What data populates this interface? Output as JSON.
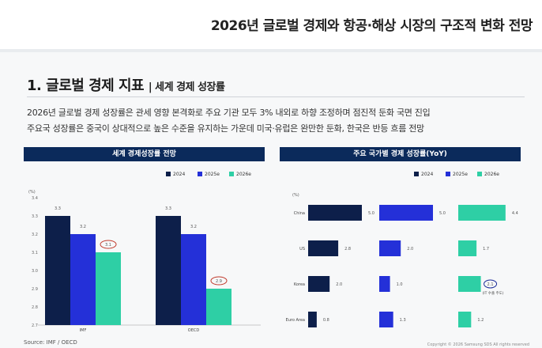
{
  "header": {
    "title": "2026년 글로벌 경제와 항공·해상 시장의 구조적 변화 전망"
  },
  "section": {
    "title": "1. 글로벌 경제 지표",
    "subtitle": "| 세계 경제 성장률"
  },
  "description": [
    "2026년 글로벌 경제 성장률은 관세 영향 본격화로 주요 기관 모두 3% 내외로 하향 조정하며 점진적 둔화 국면 진입",
    "주요국 성장률은 중국이 상대적으로 높은 수준을 유지하는 가운데 미국·유럽은 완만한 둔화, 한국은 반등 흐름 전망"
  ],
  "footer": {
    "source": "Source: IMF / OECD",
    "copyright": "Copyright © 2026 Samsung SDS All rights reserved"
  },
  "colors": {
    "s2024": "#0d1f4a",
    "s2025": "#2430d8",
    "s2026": "#2ecfa5",
    "header": "#0b2a5b",
    "highlight": "#c0392b",
    "korea_highlight": "#1f2f9a"
  },
  "chart_data": [
    {
      "type": "bar",
      "title": "세계 경제성장률 전망",
      "unit": "(%)",
      "categories": [
        "IMF",
        "OECD"
      ],
      "series": [
        {
          "name": "2024",
          "values": [
            3.3,
            3.3
          ]
        },
        {
          "name": "2025e",
          "values": [
            3.2,
            3.2
          ]
        },
        {
          "name": "2026e",
          "values": [
            3.1,
            2.9
          ]
        }
      ],
      "ylim": [
        2.7,
        3.4
      ],
      "yticks": [
        2.7,
        2.8,
        2.9,
        3.0,
        3.1,
        3.2,
        3.3,
        3.4
      ],
      "legend": "top-right",
      "highlighted_labels": [
        "3.1",
        "2.9"
      ]
    },
    {
      "type": "bar",
      "orientation": "horizontal",
      "title": "주요 국가별 경제 성장률(YoY)",
      "unit": "(%)",
      "categories": [
        "China",
        "US",
        "Korea",
        "Euro Area"
      ],
      "series": [
        {
          "name": "2024",
          "values": [
            5.0,
            2.8,
            2.0,
            0.8
          ]
        },
        {
          "name": "2025e",
          "values": [
            5.0,
            2.0,
            1.0,
            1.3
          ]
        },
        {
          "name": "2026e",
          "values": [
            4.4,
            1.7,
            2.1,
            1.2
          ]
        }
      ],
      "legend": "top-right",
      "annotation": {
        "country": "Korea",
        "series": "2026e",
        "label": "2.1",
        "note": "(IT 수출 주도)"
      }
    }
  ]
}
